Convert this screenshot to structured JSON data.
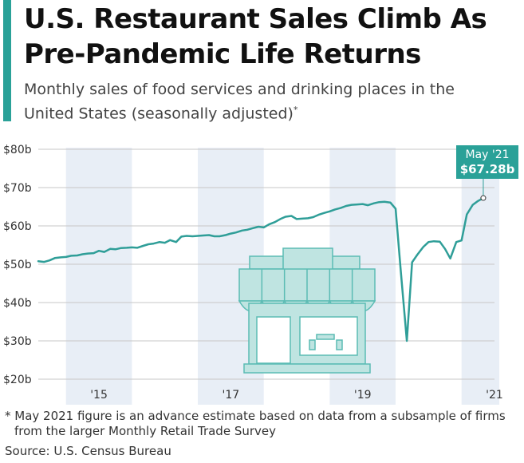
{
  "header": {
    "title": "U.S. Restaurant Sales Climb As Pre-Pandemic Life Returns",
    "subtitle": "Monthly sales of food services and drinking places in the United States (seasonally adjusted)",
    "subtitle_marker": "*"
  },
  "footer": {
    "footnote": "* May 2021 figure is an advance estimate based on data from a subsample of firms from the larger Monthly Retail Trade Survey",
    "source": "Source: U.S. Census Bureau"
  },
  "colors": {
    "accent": "#2aa198",
    "line": "#2f9e98",
    "band": "#e8eef6",
    "grid": "#c7c7c7",
    "illustration_fill": "#bfe4e1",
    "illustration_stroke": "#5bbcb4"
  },
  "illustration": {
    "icon": "restaurant-storefront-icon"
  },
  "chart_data": {
    "type": "line",
    "title": "",
    "xlabel": "",
    "ylabel": "",
    "y_unit": "billion USD",
    "ylim": [
      20,
      80
    ],
    "yticks": [
      20,
      30,
      40,
      50,
      60,
      70,
      80
    ],
    "ytick_labels": [
      "$20b",
      "$30b",
      "$40b",
      "$50b",
      "$60b",
      "$70b",
      "$80b"
    ],
    "xlim": [
      2014.58,
      2021.5
    ],
    "xticks": [
      2015,
      2017,
      2019,
      2021
    ],
    "xtick_labels": [
      "'15",
      "'17",
      "'19",
      "'21"
    ],
    "shaded_years": [
      2015,
      2017,
      2019,
      2021
    ],
    "grid": true,
    "series": [
      {
        "x": [
          2014.58,
          2014.67,
          2014.75,
          2014.83,
          2014.92,
          2015.0,
          2015.08,
          2015.17,
          2015.25,
          2015.33,
          2015.42,
          2015.5,
          2015.58,
          2015.67,
          2015.75,
          2015.83,
          2015.92,
          2016.0,
          2016.08,
          2016.17,
          2016.25,
          2016.33,
          2016.42,
          2016.5,
          2016.58,
          2016.67,
          2016.75,
          2016.83,
          2016.92,
          2017.0,
          2017.08,
          2017.17,
          2017.25,
          2017.33,
          2017.42,
          2017.5,
          2017.58,
          2017.67,
          2017.75,
          2017.83,
          2017.92,
          2018.0,
          2018.08,
          2018.17,
          2018.25,
          2018.33,
          2018.42,
          2018.5,
          2018.58,
          2018.67,
          2018.75,
          2018.83,
          2018.92,
          2019.0,
          2019.08,
          2019.17,
          2019.25,
          2019.33,
          2019.42,
          2019.5,
          2019.58,
          2019.67,
          2019.75,
          2019.83,
          2019.92,
          2020.0,
          2020.08,
          2020.17,
          2020.25,
          2020.33,
          2020.42,
          2020.5,
          2020.58,
          2020.67,
          2020.75,
          2020.83,
          2020.92,
          2021.0,
          2021.08,
          2021.17,
          2021.25,
          2021.33
        ],
        "values": [
          50.8,
          50.6,
          51.0,
          51.6,
          51.8,
          51.9,
          52.2,
          52.3,
          52.6,
          52.8,
          52.9,
          53.5,
          53.2,
          54.0,
          53.9,
          54.2,
          54.3,
          54.4,
          54.3,
          54.8,
          55.2,
          55.4,
          55.8,
          55.6,
          56.3,
          55.8,
          57.2,
          57.4,
          57.3,
          57.4,
          57.5,
          57.6,
          57.3,
          57.3,
          57.6,
          58.0,
          58.3,
          58.8,
          59.0,
          59.4,
          59.8,
          59.6,
          60.4,
          61.0,
          61.8,
          62.4,
          62.6,
          61.8,
          61.9,
          62.0,
          62.3,
          62.9,
          63.4,
          63.8,
          64.3,
          64.7,
          65.2,
          65.5,
          65.6,
          65.7,
          65.4,
          65.9,
          66.2,
          66.3,
          66.1,
          64.5,
          48.0,
          30.0,
          50.5,
          52.5,
          54.5,
          55.8,
          56.0,
          55.9,
          54.0,
          51.5,
          55.8,
          56.2,
          63.0,
          65.5,
          66.5,
          67.28
        ]
      }
    ],
    "annotation": {
      "label": "May '21",
      "value_label": "$67.28b",
      "x": 2021.33,
      "y": 67.28
    }
  }
}
